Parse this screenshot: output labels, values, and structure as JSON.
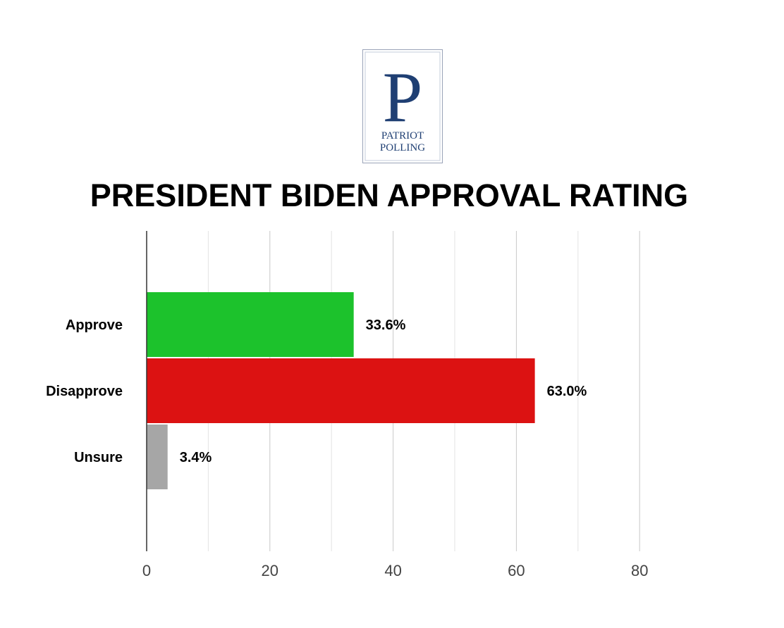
{
  "logo": {
    "letter": "P",
    "line1": "PATRIOT",
    "line2": "POLLING",
    "color": "#1f3f73"
  },
  "chart_data": {
    "type": "bar",
    "orientation": "horizontal",
    "title": "PRESIDENT BIDEN APPROVAL RATING",
    "categories": [
      "Approve",
      "Disapprove",
      "Unsure"
    ],
    "values": [
      33.6,
      63.0,
      3.4
    ],
    "value_labels": [
      "33.6%",
      "63.0%",
      "3.4%"
    ],
    "colors": [
      "#1cc22c",
      "#dc1212",
      "#a6a6a6"
    ],
    "xlim": [
      0,
      100
    ],
    "xticks": [
      0,
      20,
      40,
      60,
      80
    ],
    "minor_gridlines": [
      10,
      30,
      50,
      70
    ],
    "grid": true,
    "legend": "none"
  }
}
